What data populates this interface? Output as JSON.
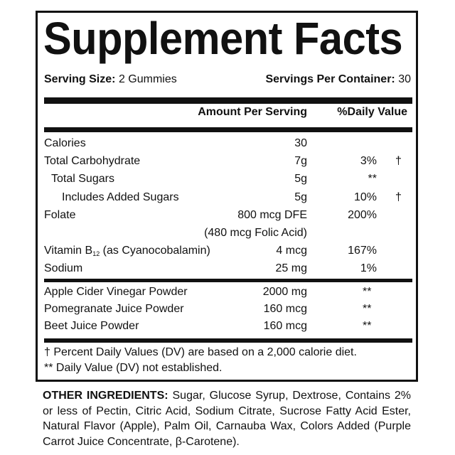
{
  "title": "Supplement Facts",
  "serving_size": {
    "label": "Serving Size:",
    "value": "2 Gummies"
  },
  "servings_per_container": {
    "label": "Servings Per Container:",
    "value": "30"
  },
  "headers": {
    "amount": "Amount Per Serving",
    "daily_value": "%Daily Value"
  },
  "rows": [
    {
      "name": "Calories",
      "amount": "30",
      "dv": "",
      "mark": ""
    },
    {
      "name": "Total Carbohydrate",
      "amount": "7g",
      "dv": "3%",
      "mark": "†"
    },
    {
      "name": "Total Sugars",
      "amount": "5g",
      "dv": "**",
      "mark": ""
    },
    {
      "name": "Includes Added Sugars",
      "amount": "5g",
      "dv": "10%",
      "mark": "†"
    },
    {
      "name": "Folate",
      "amount": "800 mcg DFE",
      "dv": "200%",
      "mark": ""
    },
    {
      "name": "",
      "amount": "(480 mcg Folic Acid)",
      "dv": "",
      "mark": ""
    },
    {
      "name": "Vitamin B",
      "name_sub": "12",
      "name_rest": " (as Cyanocobalamin)",
      "amount": "4 mcg",
      "dv": "167%",
      "mark": ""
    },
    {
      "name": "Sodium",
      "amount": "25 mg",
      "dv": "1%",
      "mark": ""
    }
  ],
  "blend_rows": [
    {
      "name": "Apple Cider Vinegar Powder",
      "amount": "2000 mg",
      "dv": "**"
    },
    {
      "name": "Pomegranate Juice Powder",
      "amount": "160 mcg",
      "dv": "**"
    },
    {
      "name": "Beet Juice Powder",
      "amount": "160 mcg",
      "dv": "**"
    }
  ],
  "footnotes": [
    "† Percent Daily Values (DV) are based on a 2,000 calorie diet.",
    "** Daily Value (DV) not established."
  ],
  "other_ingredients": {
    "label": "OTHER INGREDIENTS:",
    "text": " Sugar, Glucose Syrup, Dextrose, Contains 2% or less of Pectin, Citric Acid, Sodium Citrate, Sucrose Fatty Acid Ester, Natural Flavor (Apple), Palm Oil, Carnauba Wax, Colors Added (Purple Carrot Juice Concentrate, β-Carotene)."
  }
}
